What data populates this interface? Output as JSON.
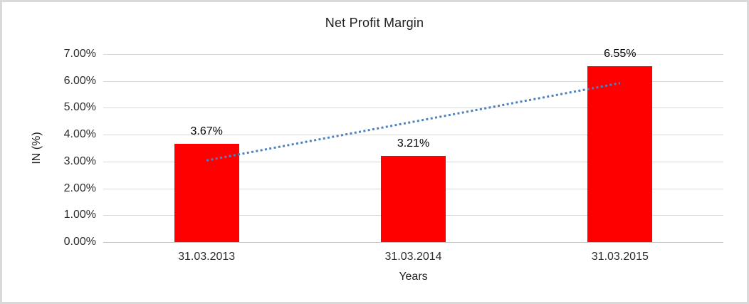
{
  "chart_data": {
    "type": "bar",
    "title": "Net Profit Margin",
    "xlabel": "Years",
    "ylabel": "IN (%)",
    "categories": [
      "31.03.2013",
      "31.03.2014",
      "31.03.2015"
    ],
    "values": [
      3.67,
      3.21,
      6.55
    ],
    "data_labels": [
      "3.67%",
      "3.21%",
      "6.55%"
    ],
    "y_ticks": [
      "0.00%",
      "1.00%",
      "2.00%",
      "3.00%",
      "4.00%",
      "5.00%",
      "6.00%",
      "7.00%"
    ],
    "ylim": [
      0,
      7
    ],
    "grid": true,
    "legend": "none",
    "bar_color": "#ff0000",
    "gridline_color": "#d9d9d9",
    "trendline": {
      "type": "linear",
      "style": "dotted",
      "color": "#4f81bd",
      "start_value": 3.04,
      "end_value": 5.92
    }
  }
}
